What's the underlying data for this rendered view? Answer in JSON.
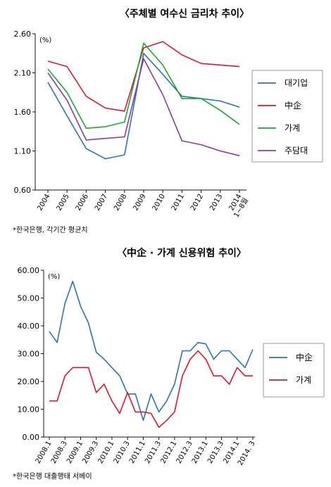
{
  "chart_data": [
    {
      "type": "line",
      "title": "〈주체별 여수신 금리차 추이〉",
      "ylabel": "(%)",
      "categories": [
        "2004",
        "2005",
        "2006",
        "2007",
        "2008",
        "2009",
        "2010",
        "2011",
        "2012",
        "2013",
        "2014\n1~8월"
      ],
      "y_ticks": [
        "2.60",
        "2.10",
        "1.60",
        "1.10",
        "0.60"
      ],
      "ylim": [
        0.6,
        2.6
      ],
      "grid": false,
      "legend": "right",
      "note": "*한국은행, 각기간 평균치",
      "series": [
        {
          "name": "대기업",
          "color": "#2a72b5",
          "values": [
            1.98,
            1.55,
            1.13,
            1.0,
            1.05,
            2.35,
            2.08,
            1.8,
            1.77,
            1.74,
            1.66
          ]
        },
        {
          "name": "中企",
          "color": "#d7192e",
          "values": [
            2.25,
            2.18,
            1.8,
            1.65,
            1.61,
            2.42,
            2.5,
            2.33,
            2.22,
            2.2,
            2.18
          ]
        },
        {
          "name": "가계",
          "color": "#1aa832",
          "values": [
            2.15,
            1.85,
            1.39,
            1.41,
            1.47,
            2.48,
            2.2,
            1.77,
            1.77,
            1.62,
            1.44
          ]
        },
        {
          "name": "주담대",
          "color": "#8a3b99",
          "values": [
            2.1,
            1.75,
            1.24,
            1.26,
            1.28,
            2.28,
            1.82,
            1.23,
            1.18,
            1.1,
            1.04
          ]
        }
      ]
    },
    {
      "type": "line",
      "title": "〈中企 · 가계 신용위험 추이〉",
      "ylabel": "(%)",
      "categories": [
        "2008.1",
        "2008.2",
        "2008.3",
        "2008.4",
        "2009.1",
        "2009.2",
        "2009.3",
        "2009.4",
        "2010.1",
        "2010.2",
        "2010.3",
        "2010.4",
        "2011.1",
        "2011.2",
        "2011.3",
        "2011.4",
        "2012.1",
        "2012.2",
        "2012.3",
        "2012.4",
        "2013.1",
        "2013.2",
        "2013.3",
        "2013.4",
        "2014.1",
        "2014.2",
        "2014.3"
      ],
      "x_tick_labels": [
        "2008.1",
        "2008.3",
        "2009.1",
        "2009.3",
        "2010.1",
        "2010.3",
        "2011.1",
        "2011.3",
        "2012.1",
        "2012.3",
        "2013.1",
        "2013.3",
        "2014.1",
        "2014. 3"
      ],
      "y_ticks": [
        "60.00",
        "50.00",
        "40.00",
        "30.00",
        "20.00",
        "10.00",
        "0.00"
      ],
      "ylim": [
        0,
        60
      ],
      "grid": false,
      "legend": "right",
      "note": "*한국은행 대출행태 서베이",
      "series": [
        {
          "name": "中企",
          "color": "#2a72b5",
          "values": [
            38,
            34,
            48,
            56,
            47,
            41,
            30.5,
            28,
            25,
            22,
            15.5,
            15.5,
            6,
            15.5,
            9,
            13,
            19,
            31,
            31,
            34,
            33.5,
            28,
            31,
            31,
            28,
            25,
            31.5
          ]
        },
        {
          "name": "가계",
          "color": "#d7192e",
          "values": [
            13,
            13,
            22,
            25,
            25,
            25,
            16,
            19,
            13,
            8.5,
            16,
            9,
            9,
            8.5,
            3.5,
            6,
            9,
            22,
            28,
            31,
            28,
            22,
            22,
            19,
            25,
            22,
            22
          ]
        }
      ]
    }
  ]
}
